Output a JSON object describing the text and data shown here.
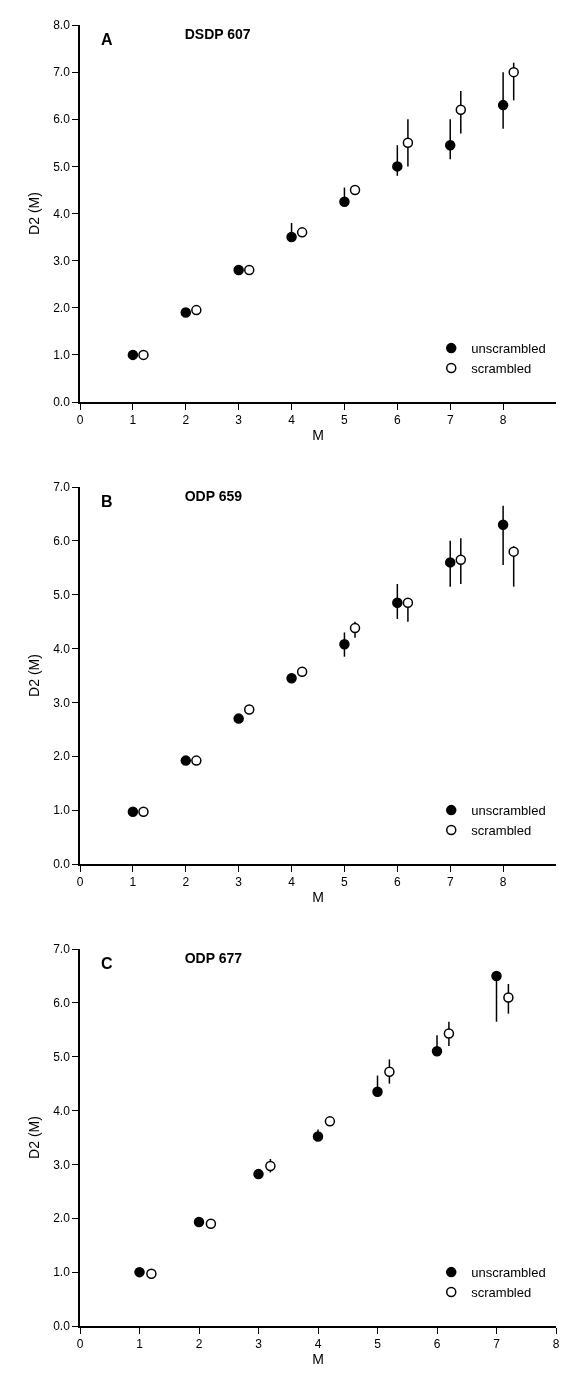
{
  "chart_data": [
    {
      "type": "scatter",
      "title": "DSDP 607",
      "annotations": [
        "A"
      ],
      "xlabel": "M",
      "ylabel": "D2 (M)",
      "xlim": [
        0,
        9
      ],
      "xticks": [
        0,
        1,
        2,
        3,
        4,
        5,
        6,
        7,
        8
      ],
      "ylim": [
        0,
        8
      ],
      "yticks": [
        {
          "value": 0,
          "label": "0.0"
        },
        {
          "value": 1,
          "label": "1.0"
        },
        {
          "value": 2,
          "label": "2.0"
        },
        {
          "value": 3,
          "label": "3.0"
        },
        {
          "value": 4,
          "label": "4.0"
        },
        {
          "value": 5,
          "label": "5.0"
        },
        {
          "value": 6,
          "label": "6.0"
        },
        {
          "value": 7,
          "label": "7.0"
        },
        {
          "value": 8,
          "label": "8.0"
        }
      ],
      "grid": false,
      "legend": "bottom right",
      "marker": "circle",
      "series": [
        {
          "name": "unscrambled",
          "color": "#000000",
          "x": [
            1,
            2,
            3,
            4,
            5,
            6,
            7,
            8
          ],
          "values": [
            1.0,
            1.9,
            2.8,
            3.5,
            4.25,
            5.0,
            5.45,
            6.3
          ],
          "errors": [
            null,
            null,
            null,
            [
              3.45,
              3.8
            ],
            [
              4.2,
              4.55
            ],
            [
              4.8,
              5.45
            ],
            [
              5.15,
              6.0
            ],
            [
              5.8,
              7.0
            ]
          ]
        },
        {
          "name": "scrambled",
          "color": "#ffffff",
          "x": [
            1.2,
            2.2,
            3.2,
            4.2,
            5.2,
            6.2,
            7.2,
            8.2
          ],
          "values": [
            1.0,
            1.95,
            2.8,
            3.6,
            4.5,
            5.5,
            6.2,
            7.0
          ],
          "errors": [
            null,
            null,
            null,
            null,
            [
              4.4,
              4.6
            ],
            [
              5.0,
              6.0
            ],
            [
              5.7,
              6.6
            ],
            [
              6.4,
              7.2
            ]
          ]
        }
      ]
    },
    {
      "type": "scatter",
      "title": "ODP 659",
      "annotations": [
        "B"
      ],
      "xlabel": "M",
      "ylabel": "D2 (M)",
      "xlim": [
        0,
        9
      ],
      "xticks": [
        0,
        1,
        2,
        3,
        4,
        5,
        6,
        7,
        8
      ],
      "ylim": [
        0,
        7
      ],
      "yticks": [
        {
          "value": 0,
          "label": "0.0"
        },
        {
          "value": 1,
          "label": "1.0"
        },
        {
          "value": 2,
          "label": "2.0"
        },
        {
          "value": 3,
          "label": "3.0"
        },
        {
          "value": 4,
          "label": "4.0"
        },
        {
          "value": 5,
          "label": "5.0"
        },
        {
          "value": 6,
          "label": "6.0"
        },
        {
          "value": 7,
          "label": "7.0"
        }
      ],
      "grid": false,
      "legend": "bottom right",
      "marker": "circle",
      "series": [
        {
          "name": "unscrambled",
          "color": "#000000",
          "x": [
            1,
            2,
            3,
            4,
            5,
            6,
            7,
            8
          ],
          "values": [
            0.97,
            1.92,
            2.7,
            3.45,
            4.08,
            4.85,
            5.6,
            6.3
          ],
          "errors": [
            null,
            null,
            null,
            null,
            [
              3.85,
              4.3
            ],
            [
              4.55,
              5.2
            ],
            [
              5.15,
              6.0
            ],
            [
              5.55,
              6.65
            ]
          ]
        },
        {
          "name": "scrambled",
          "color": "#ffffff",
          "x": [
            1.2,
            2.2,
            3.2,
            4.2,
            5.2,
            6.2,
            7.2,
            8.2
          ],
          "values": [
            0.97,
            1.92,
            2.87,
            3.57,
            4.38,
            4.85,
            5.65,
            5.8
          ],
          "errors": [
            null,
            null,
            null,
            null,
            [
              4.2,
              4.5
            ],
            [
              4.5,
              4.9
            ],
            [
              5.2,
              6.05
            ],
            [
              5.15,
              5.9
            ]
          ]
        }
      ]
    },
    {
      "type": "scatter",
      "title": "ODP 677",
      "annotations": [
        "C"
      ],
      "xlabel": "M",
      "ylabel": "D2 (M)",
      "xlim": [
        0,
        8
      ],
      "xticks": [
        0,
        1,
        2,
        3,
        4,
        5,
        6,
        7,
        8
      ],
      "ylim": [
        0,
        7
      ],
      "yticks": [
        {
          "value": 0,
          "label": "0.0"
        },
        {
          "value": 1,
          "label": "1.0"
        },
        {
          "value": 2,
          "label": "2.0"
        },
        {
          "value": 3,
          "label": "3.0"
        },
        {
          "value": 4,
          "label": "4.0"
        },
        {
          "value": 5,
          "label": "5.0"
        },
        {
          "value": 6,
          "label": "6.0"
        },
        {
          "value": 7,
          "label": "7.0"
        }
      ],
      "grid": false,
      "legend": "bottom right",
      "marker": "circle",
      "series": [
        {
          "name": "unscrambled",
          "color": "#000000",
          "x": [
            1,
            2,
            3,
            4,
            5,
            6,
            7
          ],
          "values": [
            1.0,
            1.93,
            2.82,
            3.52,
            4.35,
            5.1,
            6.5
          ],
          "errors": [
            null,
            null,
            null,
            [
              3.5,
              3.65
            ],
            [
              4.35,
              4.65
            ],
            [
              5.1,
              5.4
            ],
            [
              5.65,
              6.5
            ]
          ]
        },
        {
          "name": "scrambled",
          "color": "#ffffff",
          "x": [
            1.2,
            2.2,
            3.2,
            4.2,
            5.2,
            6.2,
            7.2
          ],
          "values": [
            0.97,
            1.9,
            2.97,
            3.8,
            4.72,
            5.43,
            6.1
          ],
          "errors": [
            null,
            null,
            [
              2.85,
              3.1
            ],
            null,
            [
              4.5,
              4.95
            ],
            [
              5.2,
              5.65
            ],
            [
              5.8,
              6.35
            ]
          ]
        }
      ]
    }
  ]
}
